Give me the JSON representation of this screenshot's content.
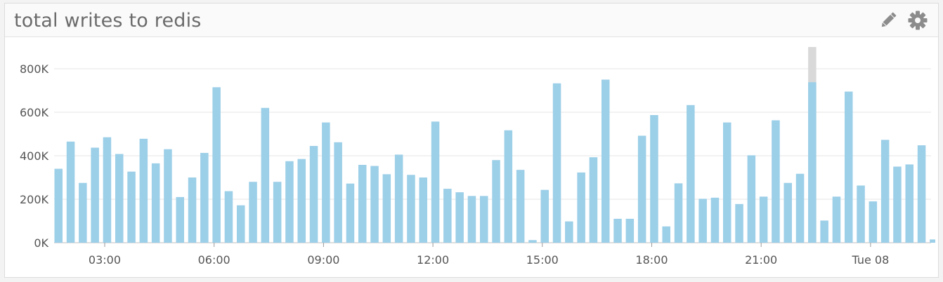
{
  "widget": {
    "title": "total writes to redis",
    "icons": [
      "pencil-icon",
      "gear-icon"
    ]
  },
  "chart_data": {
    "type": "bar",
    "color": "#9ccfe8",
    "highlight_color": "#d9d9d9",
    "grid": true,
    "ylim": [
      0,
      900000
    ],
    "y_ticks": [
      0,
      200000,
      400000,
      600000,
      800000
    ],
    "y_tick_labels": [
      "0K",
      "200K",
      "400K",
      "600K",
      "800K"
    ],
    "x_tick_labels": [
      "03:00",
      "06:00",
      "09:00",
      "12:00",
      "15:00",
      "18:00",
      "21:00",
      "Tue 08"
    ],
    "x_tick_bar_index": [
      3.8,
      12.8,
      21.8,
      30.8,
      39.8,
      48.8,
      57.8,
      66.8
    ],
    "highlight_index": 62,
    "highlight_value": 900000,
    "values": [
      340000,
      465000,
      275000,
      437000,
      485000,
      408000,
      327000,
      478000,
      365000,
      430000,
      210000,
      300000,
      413000,
      715000,
      237000,
      172000,
      280000,
      620000,
      280000,
      375000,
      385000,
      445000,
      553000,
      462000,
      272000,
      358000,
      353000,
      315000,
      405000,
      312000,
      300000,
      557000,
      248000,
      232000,
      215000,
      215000,
      380000,
      517000,
      335000,
      12000,
      243000,
      733000,
      98000,
      323000,
      393000,
      750000,
      110000,
      110000,
      492000,
      587000,
      75000,
      273000,
      633000,
      202000,
      207000,
      553000,
      178000,
      402000,
      212000,
      563000,
      275000,
      317000,
      738000,
      102000,
      212000,
      695000,
      263000,
      190000,
      473000,
      350000,
      360000,
      448000,
      15000
    ]
  }
}
